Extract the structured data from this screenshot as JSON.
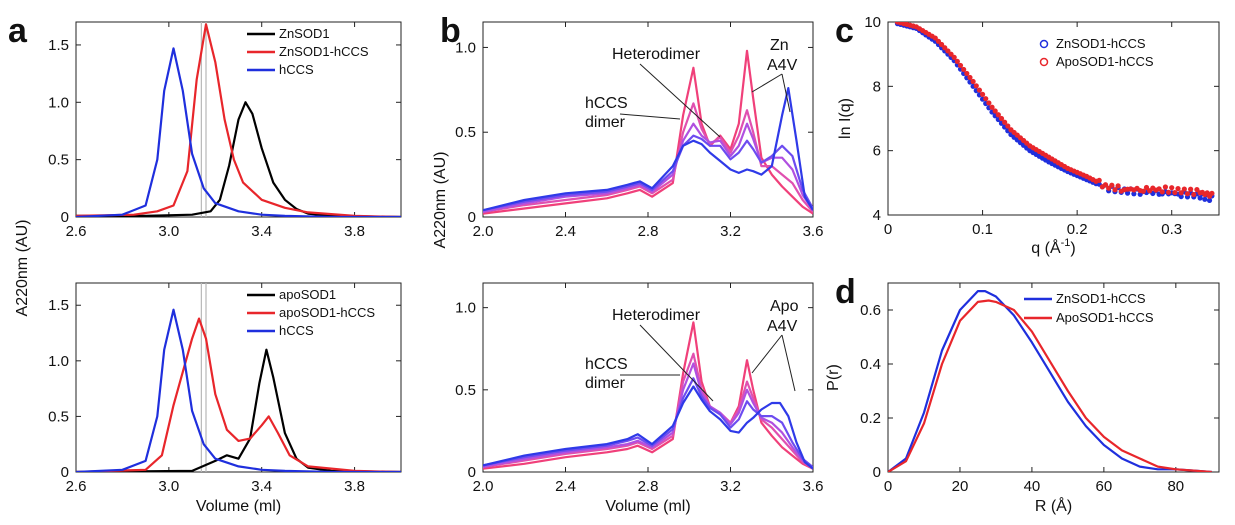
{
  "panel_letters": [
    "a",
    "b",
    "c",
    "d"
  ],
  "chart_data": [
    {
      "id": "a-top",
      "type": "line",
      "xlabel": "",
      "ylabel": "A220nm (AU)",
      "xlim": [
        2.6,
        4.0
      ],
      "ylim": [
        0,
        1.7
      ],
      "xticks": [
        "2.6",
        "3.0",
        "3.4",
        "3.8"
      ],
      "yticks": [
        "0",
        "0.5",
        "1.0",
        "1.5"
      ],
      "legend": "top-right",
      "vlines": [
        3.14,
        3.16
      ],
      "series": [
        {
          "name": "ZnSOD1",
          "color": "#000000",
          "x": [
            2.6,
            2.9,
            3.1,
            3.18,
            3.22,
            3.26,
            3.3,
            3.33,
            3.36,
            3.4,
            3.45,
            3.5,
            3.55,
            3.6,
            3.7,
            4.0
          ],
          "y": [
            0.01,
            0.01,
            0.02,
            0.05,
            0.15,
            0.45,
            0.85,
            1.0,
            0.9,
            0.6,
            0.3,
            0.15,
            0.07,
            0.03,
            0.01,
            0.0
          ]
        },
        {
          "name": "ZnSOD1-hCCS",
          "color": "#e8262b",
          "x": [
            2.6,
            2.85,
            2.95,
            3.02,
            3.08,
            3.12,
            3.16,
            3.2,
            3.24,
            3.28,
            3.32,
            3.4,
            3.5,
            3.6,
            3.8,
            4.0
          ],
          "y": [
            0.01,
            0.02,
            0.05,
            0.1,
            0.4,
            1.2,
            1.68,
            1.35,
            0.85,
            0.5,
            0.3,
            0.15,
            0.08,
            0.04,
            0.01,
            0.0
          ]
        },
        {
          "name": "hCCS",
          "color": "#1f2fdd",
          "x": [
            2.6,
            2.8,
            2.9,
            2.95,
            2.98,
            3.02,
            3.06,
            3.1,
            3.15,
            3.2,
            3.3,
            3.4,
            3.5,
            3.7,
            4.0
          ],
          "y": [
            0.0,
            0.02,
            0.1,
            0.5,
            1.1,
            1.47,
            1.1,
            0.55,
            0.25,
            0.12,
            0.05,
            0.02,
            0.01,
            0.0,
            0.0
          ]
        }
      ]
    },
    {
      "id": "a-bottom",
      "type": "line",
      "xlabel": "Volume (ml)",
      "ylabel": "",
      "xlim": [
        2.6,
        4.0
      ],
      "ylim": [
        0,
        1.7
      ],
      "xticks": [
        "2.6",
        "3.0",
        "3.4",
        "3.8"
      ],
      "yticks": [
        "0",
        "0.5",
        "1.0",
        "1.5"
      ],
      "legend": "top-right",
      "vlines": [
        3.14,
        3.16
      ],
      "series": [
        {
          "name": "apoSOD1",
          "color": "#000000",
          "x": [
            2.6,
            3.1,
            3.2,
            3.25,
            3.3,
            3.35,
            3.39,
            3.42,
            3.45,
            3.5,
            3.55,
            3.6,
            3.7,
            4.0
          ],
          "y": [
            0.0,
            0.01,
            0.1,
            0.15,
            0.12,
            0.3,
            0.8,
            1.1,
            0.85,
            0.35,
            0.12,
            0.04,
            0.01,
            0.0
          ]
        },
        {
          "name": "apoSOD1-hCCS",
          "color": "#e8262b",
          "x": [
            2.6,
            2.9,
            2.97,
            3.02,
            3.06,
            3.1,
            3.13,
            3.16,
            3.2,
            3.25,
            3.3,
            3.35,
            3.4,
            3.43,
            3.47,
            3.52,
            3.6,
            3.8,
            4.0
          ],
          "y": [
            0.0,
            0.02,
            0.15,
            0.6,
            0.9,
            1.2,
            1.38,
            1.2,
            0.7,
            0.38,
            0.28,
            0.3,
            0.42,
            0.5,
            0.35,
            0.15,
            0.05,
            0.01,
            0.0
          ]
        },
        {
          "name": "hCCS",
          "color": "#1f2fdd",
          "x": [
            2.6,
            2.8,
            2.9,
            2.95,
            2.98,
            3.02,
            3.06,
            3.1,
            3.15,
            3.2,
            3.3,
            3.4,
            3.5,
            3.7,
            4.0
          ],
          "y": [
            0.0,
            0.02,
            0.1,
            0.5,
            1.1,
            1.46,
            1.1,
            0.55,
            0.25,
            0.12,
            0.05,
            0.02,
            0.01,
            0.0,
            0.0
          ]
        }
      ]
    },
    {
      "id": "b-top",
      "type": "line",
      "xlabel": "",
      "ylabel": "A220nm (AU)",
      "xlim": [
        2.0,
        3.6
      ],
      "ylim": [
        0,
        1.15
      ],
      "xticks": [
        "2.0",
        "2.4",
        "2.8",
        "3.2",
        "3.6"
      ],
      "yticks": [
        "0",
        "0.5",
        "1.0"
      ],
      "annotations": [
        "Heterodimer",
        "hCCS",
        "dimer",
        "Zn",
        "A4V"
      ],
      "series": [
        {
          "color": "#f0407a",
          "x": [
            2.0,
            2.2,
            2.4,
            2.6,
            2.7,
            2.76,
            2.82,
            2.92,
            2.97,
            3.02,
            3.06,
            3.1,
            3.15,
            3.2,
            3.24,
            3.28,
            3.31,
            3.35,
            3.4,
            3.45,
            3.5,
            3.55,
            3.6
          ],
          "y": [
            0.02,
            0.05,
            0.08,
            0.11,
            0.14,
            0.16,
            0.12,
            0.2,
            0.6,
            0.88,
            0.55,
            0.42,
            0.48,
            0.4,
            0.55,
            0.98,
            0.7,
            0.35,
            0.25,
            0.18,
            0.12,
            0.06,
            0.02
          ]
        },
        {
          "color": "#e050b0",
          "x": [
            2.0,
            2.2,
            2.4,
            2.6,
            2.7,
            2.76,
            2.82,
            2.92,
            2.97,
            3.02,
            3.06,
            3.1,
            3.15,
            3.2,
            3.24,
            3.28,
            3.31,
            3.35,
            3.4,
            3.45,
            3.5,
            3.55,
            3.6
          ],
          "y": [
            0.03,
            0.07,
            0.1,
            0.13,
            0.16,
            0.18,
            0.14,
            0.22,
            0.5,
            0.67,
            0.52,
            0.43,
            0.47,
            0.38,
            0.48,
            0.63,
            0.5,
            0.3,
            0.3,
            0.25,
            0.2,
            0.1,
            0.03
          ]
        },
        {
          "color": "#b050e0",
          "x": [
            2.0,
            2.2,
            2.4,
            2.6,
            2.7,
            2.76,
            2.82,
            2.92,
            2.97,
            3.02,
            3.06,
            3.1,
            3.15,
            3.2,
            3.24,
            3.28,
            3.31,
            3.35,
            3.4,
            3.45,
            3.5,
            3.55,
            3.6
          ],
          "y": [
            0.03,
            0.08,
            0.12,
            0.14,
            0.17,
            0.19,
            0.15,
            0.25,
            0.45,
            0.55,
            0.48,
            0.44,
            0.45,
            0.36,
            0.42,
            0.55,
            0.46,
            0.32,
            0.35,
            0.35,
            0.28,
            0.13,
            0.04
          ]
        },
        {
          "color": "#6d4cf0",
          "x": [
            2.0,
            2.2,
            2.4,
            2.6,
            2.7,
            2.76,
            2.82,
            2.92,
            2.97,
            3.02,
            3.06,
            3.1,
            3.15,
            3.2,
            3.24,
            3.28,
            3.31,
            3.35,
            3.4,
            3.45,
            3.5,
            3.55,
            3.6
          ],
          "y": [
            0.04,
            0.09,
            0.13,
            0.15,
            0.18,
            0.2,
            0.16,
            0.27,
            0.42,
            0.48,
            0.46,
            0.42,
            0.42,
            0.34,
            0.38,
            0.45,
            0.4,
            0.32,
            0.36,
            0.42,
            0.36,
            0.16,
            0.05
          ]
        },
        {
          "color": "#2f3ae8",
          "x": [
            2.0,
            2.2,
            2.4,
            2.6,
            2.7,
            2.76,
            2.82,
            2.92,
            2.97,
            3.02,
            3.06,
            3.1,
            3.15,
            3.2,
            3.24,
            3.28,
            3.31,
            3.35,
            3.4,
            3.45,
            3.48,
            3.52,
            3.56,
            3.6
          ],
          "y": [
            0.04,
            0.1,
            0.14,
            0.16,
            0.19,
            0.21,
            0.17,
            0.3,
            0.42,
            0.45,
            0.43,
            0.38,
            0.33,
            0.28,
            0.26,
            0.28,
            0.27,
            0.25,
            0.3,
            0.6,
            0.76,
            0.45,
            0.12,
            0.04
          ]
        }
      ]
    },
    {
      "id": "b-bottom",
      "type": "line",
      "xlabel": "Volume (ml)",
      "ylabel": "",
      "xlim": [
        2.0,
        3.6
      ],
      "ylim": [
        0,
        1.15
      ],
      "xticks": [
        "2.0",
        "2.4",
        "2.8",
        "3.2",
        "3.6"
      ],
      "yticks": [
        "0",
        "0.5",
        "1.0"
      ],
      "annotations": [
        "Heterodimer",
        "hCCS",
        "dimer",
        "Apo",
        "A4V"
      ],
      "series": [
        {
          "color": "#f0407a",
          "x": [
            2.0,
            2.2,
            2.4,
            2.6,
            2.7,
            2.75,
            2.82,
            2.92,
            2.97,
            3.02,
            3.06,
            3.1,
            3.15,
            3.2,
            3.24,
            3.28,
            3.31,
            3.35,
            3.4,
            3.45,
            3.5,
            3.55,
            3.6
          ],
          "y": [
            0.02,
            0.05,
            0.09,
            0.12,
            0.14,
            0.16,
            0.12,
            0.2,
            0.6,
            0.91,
            0.55,
            0.4,
            0.35,
            0.3,
            0.4,
            0.68,
            0.5,
            0.3,
            0.22,
            0.15,
            0.1,
            0.05,
            0.02
          ]
        },
        {
          "color": "#e050b0",
          "x": [
            2.0,
            2.2,
            2.4,
            2.6,
            2.7,
            2.75,
            2.82,
            2.92,
            2.97,
            3.02,
            3.06,
            3.1,
            3.15,
            3.2,
            3.24,
            3.28,
            3.31,
            3.35,
            3.4,
            3.45,
            3.5,
            3.55,
            3.6
          ],
          "y": [
            0.03,
            0.07,
            0.11,
            0.14,
            0.16,
            0.18,
            0.14,
            0.22,
            0.55,
            0.72,
            0.5,
            0.4,
            0.36,
            0.3,
            0.38,
            0.55,
            0.45,
            0.32,
            0.27,
            0.2,
            0.13,
            0.06,
            0.02
          ]
        },
        {
          "color": "#b050e0",
          "x": [
            2.0,
            2.2,
            2.4,
            2.6,
            2.7,
            2.75,
            2.82,
            2.92,
            2.97,
            3.02,
            3.06,
            3.1,
            3.15,
            3.2,
            3.24,
            3.28,
            3.31,
            3.35,
            3.4,
            3.45,
            3.5,
            3.55,
            3.6
          ],
          "y": [
            0.03,
            0.08,
            0.12,
            0.15,
            0.17,
            0.19,
            0.15,
            0.24,
            0.5,
            0.66,
            0.48,
            0.4,
            0.36,
            0.29,
            0.36,
            0.5,
            0.42,
            0.33,
            0.3,
            0.24,
            0.15,
            0.07,
            0.02
          ]
        },
        {
          "color": "#6d4cf0",
          "x": [
            2.0,
            2.2,
            2.4,
            2.6,
            2.7,
            2.75,
            2.82,
            2.92,
            2.97,
            3.02,
            3.06,
            3.1,
            3.15,
            3.2,
            3.24,
            3.28,
            3.31,
            3.35,
            3.4,
            3.45,
            3.5,
            3.55,
            3.6
          ],
          "y": [
            0.04,
            0.09,
            0.13,
            0.16,
            0.19,
            0.21,
            0.16,
            0.26,
            0.45,
            0.57,
            0.46,
            0.39,
            0.35,
            0.27,
            0.32,
            0.43,
            0.38,
            0.34,
            0.34,
            0.3,
            0.18,
            0.08,
            0.03
          ]
        },
        {
          "color": "#2f3ae8",
          "x": [
            2.0,
            2.2,
            2.4,
            2.6,
            2.7,
            2.75,
            2.82,
            2.92,
            2.97,
            3.02,
            3.06,
            3.1,
            3.15,
            3.2,
            3.24,
            3.28,
            3.31,
            3.35,
            3.4,
            3.44,
            3.48,
            3.52,
            3.56,
            3.6
          ],
          "y": [
            0.04,
            0.1,
            0.14,
            0.17,
            0.2,
            0.23,
            0.17,
            0.28,
            0.42,
            0.52,
            0.44,
            0.37,
            0.32,
            0.25,
            0.24,
            0.3,
            0.33,
            0.38,
            0.42,
            0.42,
            0.34,
            0.18,
            0.06,
            0.02
          ]
        }
      ]
    },
    {
      "id": "c",
      "type": "scatter",
      "xlabel": "q (Å",
      "xlabel_sup": "-1",
      "xlabel_tail": ")",
      "ylabel": "ln I(q)",
      "xlim": [
        0,
        0.35
      ],
      "ylim": [
        4,
        10
      ],
      "xticks": [
        "0",
        "0.1",
        "0.2",
        "0.3"
      ],
      "yticks": [
        "4",
        "6",
        "8",
        "10"
      ],
      "legend": "top-right",
      "series": [
        {
          "name": "ZnSOD1-hCCS",
          "color": "#1f2fdd",
          "x": [
            0.01,
            0.03,
            0.05,
            0.07,
            0.09,
            0.11,
            0.13,
            0.15,
            0.17,
            0.19,
            0.21,
            0.23,
            0.25,
            0.27,
            0.29,
            0.31,
            0.33,
            0.345
          ],
          "y": [
            9.95,
            9.8,
            9.4,
            8.8,
            8.0,
            7.2,
            6.5,
            6.0,
            5.65,
            5.35,
            5.1,
            4.85,
            4.75,
            4.72,
            4.7,
            4.65,
            4.6,
            4.5
          ]
        },
        {
          "name": "ApoSOD1-hCCS",
          "color": "#e8262b",
          "x": [
            0.01,
            0.03,
            0.05,
            0.07,
            0.09,
            0.11,
            0.13,
            0.15,
            0.17,
            0.19,
            0.21,
            0.23,
            0.25,
            0.27,
            0.29,
            0.31,
            0.33,
            0.345
          ],
          "y": [
            10.0,
            9.85,
            9.5,
            8.9,
            8.15,
            7.35,
            6.65,
            6.15,
            5.8,
            5.45,
            5.2,
            4.9,
            4.8,
            4.8,
            4.8,
            4.75,
            4.7,
            4.6
          ]
        }
      ]
    },
    {
      "id": "d",
      "type": "line",
      "xlabel": "R (Å)",
      "ylabel": "P(r)",
      "xlim": [
        0,
        92
      ],
      "ylim": [
        0,
        0.7
      ],
      "xticks": [
        "0",
        "20",
        "40",
        "60",
        "80"
      ],
      "yticks": [
        "0",
        "0.2",
        "0.4",
        "0.6"
      ],
      "legend": "top-right",
      "series": [
        {
          "name": "ZnSOD1-hCCS",
          "color": "#1f2fdd",
          "x": [
            0,
            5,
            10,
            15,
            20,
            25,
            27,
            30,
            35,
            40,
            45,
            50,
            55,
            60,
            65,
            70,
            75,
            80,
            85,
            90
          ],
          "y": [
            0,
            0.05,
            0.22,
            0.45,
            0.6,
            0.67,
            0.67,
            0.65,
            0.58,
            0.48,
            0.37,
            0.26,
            0.17,
            0.1,
            0.05,
            0.02,
            0.01,
            0.01,
            0.005,
            0
          ]
        },
        {
          "name": "ApoSOD1-hCCS",
          "color": "#e8262b",
          "x": [
            0,
            5,
            10,
            15,
            20,
            25,
            28,
            30,
            35,
            40,
            45,
            50,
            55,
            60,
            65,
            70,
            75,
            80,
            85,
            90
          ],
          "y": [
            0,
            0.04,
            0.18,
            0.4,
            0.56,
            0.63,
            0.635,
            0.63,
            0.6,
            0.52,
            0.41,
            0.3,
            0.2,
            0.13,
            0.08,
            0.05,
            0.02,
            0.01,
            0.005,
            0
          ]
        }
      ]
    }
  ]
}
